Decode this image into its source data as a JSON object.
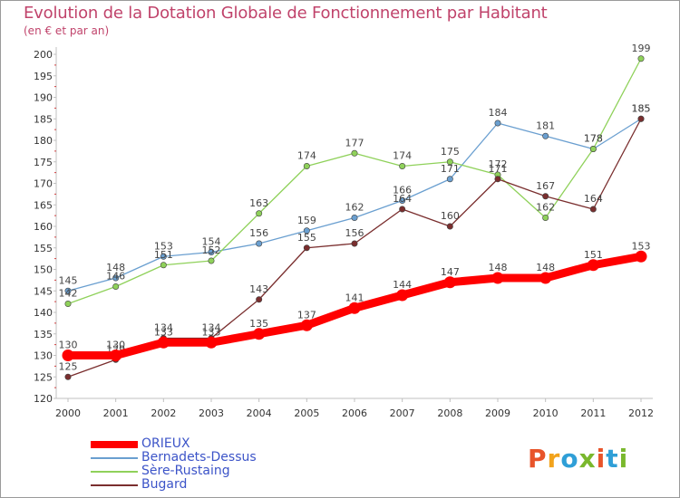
{
  "header": {
    "title": "Evolution de la Dotation Globale de Fonctionnement par Habitant",
    "subtitle": "(en € et par an)"
  },
  "logo": {
    "text": "Proxiti",
    "colors": [
      "#e8542a",
      "#f2a31c",
      "#2f9fd7",
      "#7ab82d",
      "#e8542a",
      "#2f9fd7",
      "#7ab82d"
    ]
  },
  "chart_data": {
    "type": "line",
    "x": [
      "2000",
      "2001",
      "2002",
      "2003",
      "2004",
      "2005",
      "2006",
      "2007",
      "2008",
      "2009",
      "2010",
      "2011",
      "2012"
    ],
    "ylim": [
      120,
      200
    ],
    "yticks": [
      120,
      125,
      130,
      135,
      140,
      145,
      150,
      155,
      160,
      165,
      170,
      175,
      180,
      185,
      190,
      195,
      200
    ],
    "grid": false,
    "legend_position": "bottom-left",
    "series": [
      {
        "name": "ORIEUX",
        "color": "#ff0000",
        "values": [
          130,
          130,
          133,
          133,
          135,
          137,
          141,
          144,
          147,
          148,
          148,
          151,
          153
        ]
      },
      {
        "name": "Bernadets-Dessus",
        "color": "#6a9fd0",
        "values": [
          145,
          148,
          153,
          154,
          156,
          159,
          162,
          166,
          171,
          184,
          181,
          178,
          185
        ]
      },
      {
        "name": "Sère-Rustaing",
        "color": "#8fd15a",
        "values": [
          142,
          146,
          151,
          152,
          163,
          174,
          177,
          174,
          175,
          172,
          162,
          178,
          199
        ]
      },
      {
        "name": "Bugard",
        "color": "#7a2e2e",
        "values": [
          125,
          129,
          134,
          134,
          143,
          155,
          156,
          164,
          160,
          171,
          167,
          164,
          185
        ]
      }
    ]
  }
}
